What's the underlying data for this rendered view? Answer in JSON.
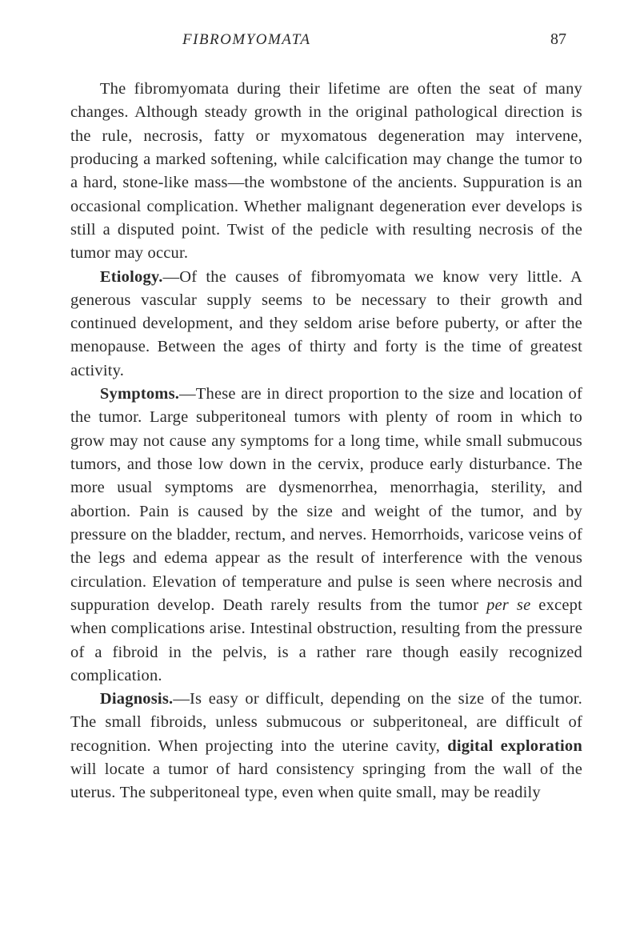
{
  "header": {
    "running_title": "FIBROMYOMATA",
    "page_number": "87"
  },
  "paragraphs": {
    "p1_a": "The fibromyomata during their lifetime are often the seat of many changes. Although steady growth in the original pathological direction is the rule, necrosis, fatty or myxo­matous degeneration may intervene, producing a marked softening, while calcification may change the tumor to a hard, stone-like mass—the wombstone of the ancients. Suppura­tion is an occasional complication. Whether malignant degeneration ever develops is still a disputed point. Twist of the pedicle with resulting necrosis of the tumor may occur.",
    "p2_lead": "Etiology.",
    "p2_a": "—Of the causes of fibromyomata we know very little. A generous vascular supply seems to be necessary to their growth and continued development, and they seldom arise before puberty, or after the menopause. Between the ages of thirty and forty is the time of greatest activity.",
    "p3_lead": "Symptoms.",
    "p3_a": "—These are in direct proportion to the size and location of the tumor. Large subperitoneal tumors with plenty of room in which to grow may not cause any symptoms for a long time, while small submucous tumors, and those low down in the cervix, produce early disturbance. The more usual symptoms are dysmenorrhea, menorrhagia, sterility, and abortion. Pain is caused by the size and weight of the tumor, and by pressure on the bladder, rectum, and nerves. Hemorrhoids, varicose veins of the legs and edema appear as the result of interference with the venous circulation. Elevation of temperature and pulse is seen where necrosis and suppuration develop. Death rarely results from the tumor ",
    "p3_italic": "per se",
    "p3_b": " except when complications arise. Intestinal obstruc­tion, resulting from the pressure of a fibroid in the pelvis, is a rather rare though easily recognized complication.",
    "p4_lead": "Diagnosis.",
    "p4_a": "—Is easy or difficult, depending on the size of the tumor. The small fibroids, unless submucous or subperi­toneal, are difficult of recognition. When projecting into the uterine cavity, ",
    "p4_bold2": "digital exploration",
    "p4_b": " will locate a tumor of hard consistency springing from the wall of the uterus. The subperitoneal type, even when quite small, may be readily"
  }
}
